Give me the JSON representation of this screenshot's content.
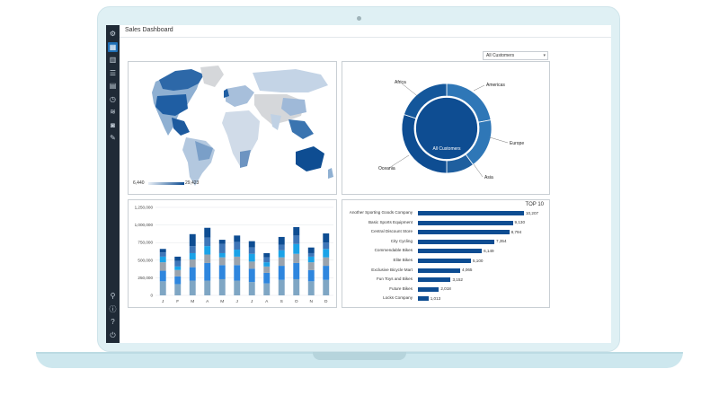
{
  "app": {
    "title": "Sales Dashboard"
  },
  "filter": {
    "selected": "All Customers",
    "icon": "chevron-down-icon"
  },
  "sidebar": {
    "items": [
      {
        "icon": "gear-icon",
        "glyph": "⚙"
      },
      {
        "icon": "dashboard-icon",
        "glyph": "▦",
        "active": true
      },
      {
        "icon": "chart-icon",
        "glyph": "▥"
      },
      {
        "icon": "list-icon",
        "glyph": "☰"
      },
      {
        "icon": "grid-icon",
        "glyph": "▤"
      },
      {
        "icon": "clock-icon",
        "glyph": "◷"
      },
      {
        "icon": "layers-icon",
        "glyph": "≋"
      },
      {
        "icon": "camera-icon",
        "glyph": "◙"
      },
      {
        "icon": "pencil-icon",
        "glyph": "✎"
      }
    ],
    "bottom_items": [
      {
        "icon": "user-icon",
        "glyph": "⚲"
      },
      {
        "icon": "info-icon",
        "glyph": "ⓘ"
      },
      {
        "icon": "help-icon",
        "glyph": "?"
      },
      {
        "icon": "power-icon",
        "glyph": "⏻"
      }
    ]
  },
  "map": {
    "legend_min": "6,440",
    "legend_max": "29,423",
    "colors": {
      "low": "#e8eef5",
      "high": "#0e4d92",
      "none": "#d5d7da"
    }
  },
  "donut": {
    "center_label": "All Customers",
    "segments": [
      {
        "label": "Americas",
        "value": 22
      },
      {
        "label": "Europe",
        "value": 18
      },
      {
        "label": "Asia",
        "value": 10
      },
      {
        "label": "Oceania",
        "value": 30
      },
      {
        "label": "Africa",
        "value": 20
      }
    ],
    "colors": [
      "#2f77b7",
      "#2f77b7",
      "#1f5f9f",
      "#0e4d92",
      "#14579b"
    ]
  },
  "chart_data": [
    {
      "type": "bar",
      "stacked": true,
      "categories": [
        "J",
        "F",
        "M",
        "A",
        "M",
        "J",
        "J",
        "A",
        "S",
        "O",
        "N",
        "D"
      ],
      "ylim": [
        0,
        1250000
      ],
      "yticks": [
        "0",
        "250,000",
        "500,000",
        "750,000",
        "1,000,000",
        "1,250,000"
      ],
      "series_colors": [
        "#7fa6c4",
        "#2e86de",
        "#9aa3ad",
        "#1aa3e8",
        "#3e76b8",
        "#0e4d92"
      ],
      "series": [
        {
          "values": [
            200000,
            160000,
            210000,
            210000,
            230000,
            210000,
            190000,
            170000,
            220000,
            230000,
            200000,
            220000
          ]
        },
        {
          "values": [
            150000,
            110000,
            190000,
            250000,
            200000,
            220000,
            190000,
            150000,
            200000,
            230000,
            160000,
            200000
          ]
        },
        {
          "values": [
            120000,
            90000,
            110000,
            120000,
            110000,
            120000,
            100000,
            90000,
            120000,
            130000,
            110000,
            120000
          ]
        },
        {
          "values": [
            80000,
            50000,
            90000,
            120000,
            60000,
            100000,
            110000,
            60000,
            100000,
            140000,
            80000,
            120000
          ]
        },
        {
          "values": [
            60000,
            80000,
            100000,
            120000,
            130000,
            110000,
            90000,
            70000,
            80000,
            120000,
            50000,
            90000
          ]
        },
        {
          "values": [
            50000,
            60000,
            170000,
            140000,
            60000,
            90000,
            90000,
            60000,
            110000,
            120000,
            80000,
            130000
          ]
        }
      ]
    },
    {
      "type": "bar",
      "orientation": "horizontal",
      "title": "TOP 10",
      "categories": [
        "Another Sporting Goods Company",
        "Basic Sports Equipment",
        "Central Discount Store",
        "City Cycling",
        "Commendable Bikes",
        "Elite Bikes",
        "Exclusive Bicycle Mart",
        "Fun Toys and Bikes",
        "Future Bikes",
        "Locks Company"
      ],
      "values": [
        10207,
        9130,
        8794,
        7354,
        6149,
        5100,
        4065,
        3152,
        2018,
        1013
      ],
      "value_labels": [
        "10,207",
        "9,130",
        "8,794",
        "7,354",
        "6,149",
        "5,100",
        "4,065",
        "3,152",
        "2,018",
        "1,013"
      ],
      "xlim": [
        0,
        10207
      ],
      "color": "#0e4d92"
    }
  ]
}
